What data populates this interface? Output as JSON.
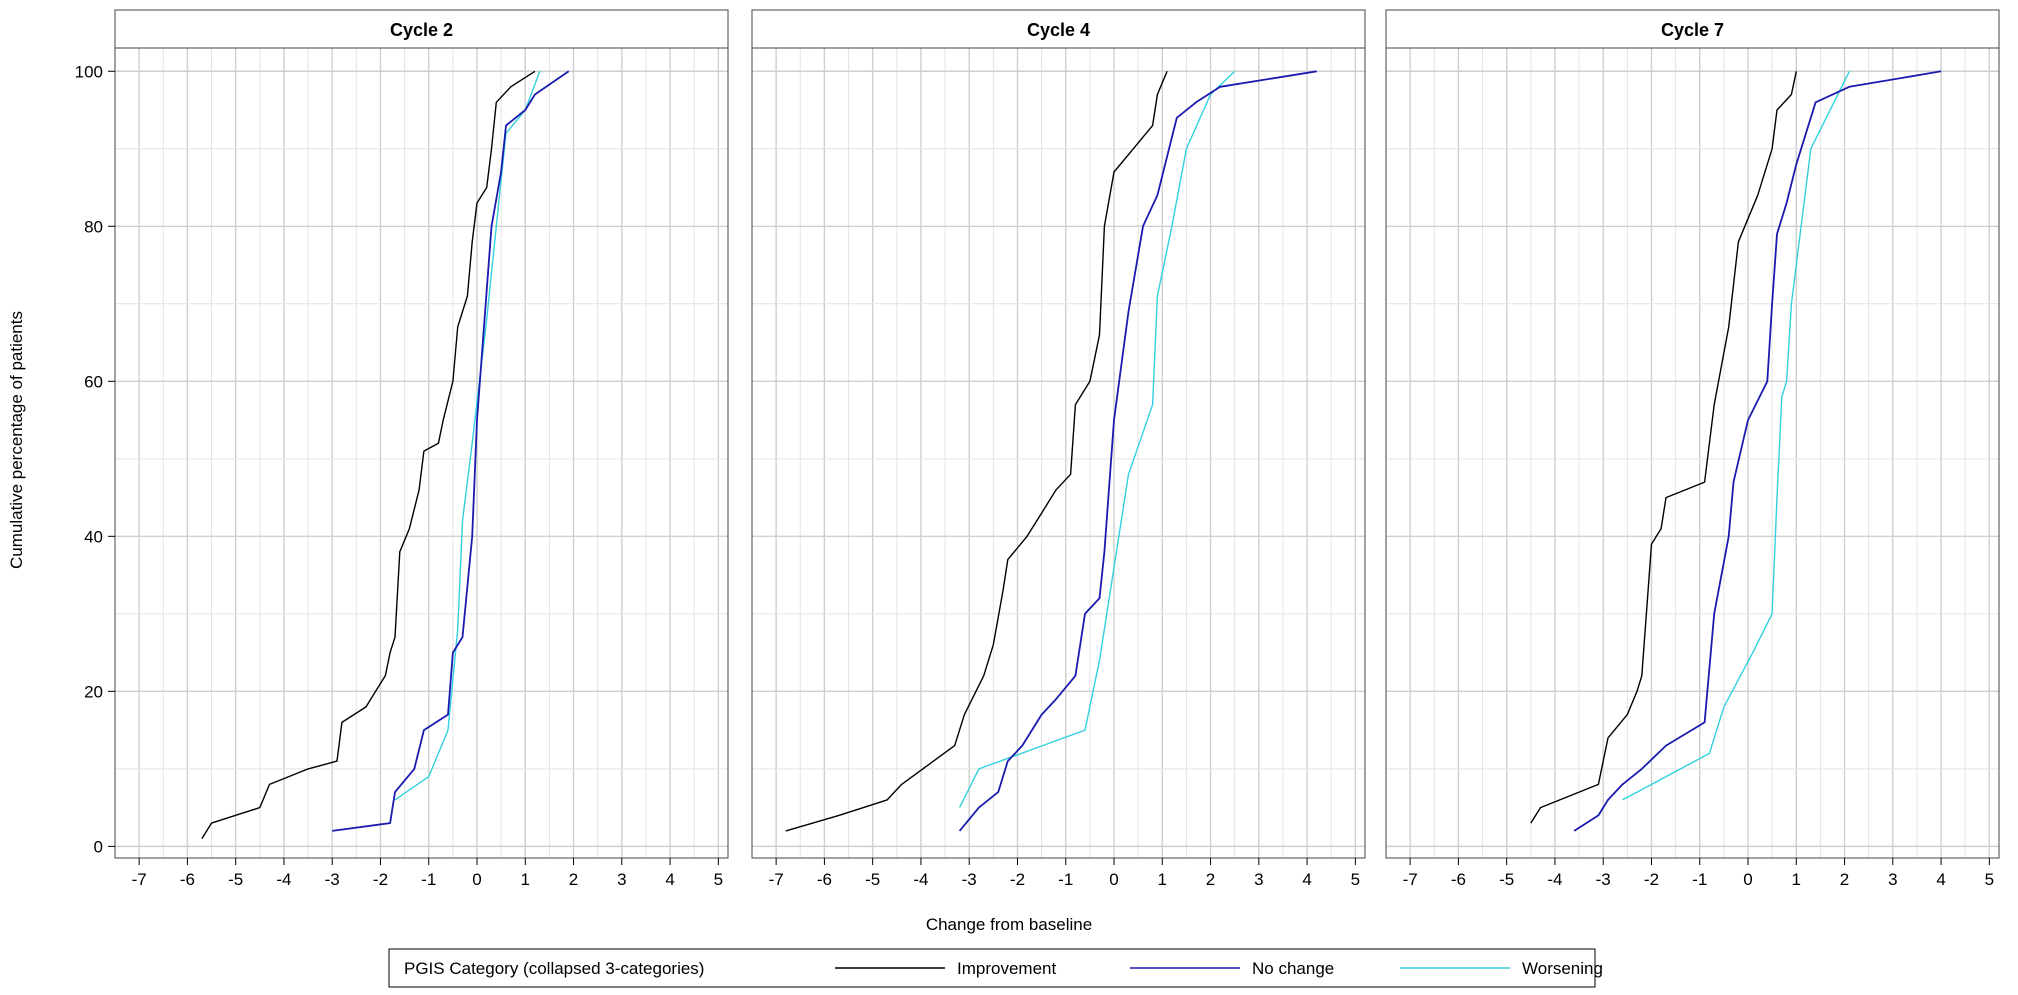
{
  "chart_data": {
    "type": "line",
    "subtype": "cumulative distribution",
    "xlabel": "Change from baseline",
    "ylabel": "Cumulative percentage of patients",
    "xlim": [
      -7.5,
      5.2
    ],
    "ylim": [
      -1.5,
      103
    ],
    "xticks": [
      -7,
      -6,
      -5,
      -4,
      -3,
      -2,
      -1,
      0,
      1,
      2,
      3,
      4,
      5
    ],
    "yticks": [
      0,
      20,
      40,
      60,
      80,
      100
    ],
    "grid": true,
    "legend": {
      "title": "PGIS Category (collapsed 3-categories)",
      "position": "bottom",
      "entries": [
        {
          "name": "Improvement",
          "color": "#000000"
        },
        {
          "name": "No change",
          "color": "#1a1aaf"
        },
        {
          "name": "Worsening",
          "color": "#31d1de"
        }
      ]
    },
    "panels": [
      {
        "title": "Cycle 2",
        "series": [
          {
            "name": "Improvement",
            "color": "#000000",
            "points": [
              [
                -5.7,
                1
              ],
              [
                -5.5,
                3
              ],
              [
                -4.5,
                5
              ],
              [
                -4.3,
                8
              ],
              [
                -3.5,
                10
              ],
              [
                -2.9,
                11
              ],
              [
                -2.8,
                16
              ],
              [
                -2.3,
                18
              ],
              [
                -2.1,
                20
              ],
              [
                -1.9,
                22
              ],
              [
                -1.8,
                25
              ],
              [
                -1.7,
                27
              ],
              [
                -1.6,
                38
              ],
              [
                -1.4,
                41
              ],
              [
                -1.2,
                46
              ],
              [
                -1.1,
                51
              ],
              [
                -0.8,
                52
              ],
              [
                -0.7,
                55
              ],
              [
                -0.5,
                60
              ],
              [
                -0.4,
                67
              ],
              [
                -0.2,
                71
              ],
              [
                -0.1,
                78
              ],
              [
                0,
                83
              ],
              [
                0.2,
                85
              ],
              [
                0.3,
                90
              ],
              [
                0.4,
                96
              ],
              [
                0.7,
                98
              ],
              [
                1.2,
                100
              ]
            ]
          },
          {
            "name": "No change",
            "color": "#1a1aaf",
            "points": [
              [
                -3,
                2
              ],
              [
                -1.8,
                3
              ],
              [
                -1.7,
                7
              ],
              [
                -1.3,
                10
              ],
              [
                -1.1,
                15
              ],
              [
                -0.6,
                17
              ],
              [
                -0.5,
                25
              ],
              [
                -0.3,
                27
              ],
              [
                -0.1,
                40
              ],
              [
                0,
                55
              ],
              [
                0.3,
                80
              ],
              [
                0.5,
                87
              ],
              [
                0.6,
                93
              ],
              [
                1,
                95
              ],
              [
                1.2,
                97
              ],
              [
                1.9,
                100
              ]
            ]
          },
          {
            "name": "Worsening",
            "color": "#31d1de",
            "points": [
              [
                -1.7,
                6
              ],
              [
                -1,
                9
              ],
              [
                -0.6,
                15
              ],
              [
                -0.4,
                28
              ],
              [
                -0.3,
                42
              ],
              [
                -0.1,
                52
              ],
              [
                0.2,
                68
              ],
              [
                0.4,
                80
              ],
              [
                0.6,
                92
              ],
              [
                1,
                95
              ],
              [
                1.3,
                100
              ]
            ]
          }
        ]
      },
      {
        "title": "Cycle 4",
        "series": [
          {
            "name": "Improvement",
            "color": "#000000",
            "points": [
              [
                -6.8,
                2
              ],
              [
                -5.7,
                4
              ],
              [
                -4.7,
                6
              ],
              [
                -4.4,
                8
              ],
              [
                -3.3,
                13
              ],
              [
                -3.1,
                17
              ],
              [
                -2.7,
                22
              ],
              [
                -2.5,
                26
              ],
              [
                -2.3,
                33
              ],
              [
                -2.2,
                37
              ],
              [
                -1.8,
                40
              ],
              [
                -1.5,
                43
              ],
              [
                -1.2,
                46
              ],
              [
                -0.9,
                48
              ],
              [
                -0.8,
                57
              ],
              [
                -0.5,
                60
              ],
              [
                -0.3,
                66
              ],
              [
                -0.2,
                80
              ],
              [
                0,
                87
              ],
              [
                0.4,
                90
              ],
              [
                0.8,
                93
              ],
              [
                0.9,
                97
              ],
              [
                1.1,
                100
              ]
            ]
          },
          {
            "name": "No change",
            "color": "#1a1aaf",
            "points": [
              [
                -3.2,
                2
              ],
              [
                -2.8,
                5
              ],
              [
                -2.4,
                7
              ],
              [
                -2.2,
                11
              ],
              [
                -1.9,
                13
              ],
              [
                -1.5,
                17
              ],
              [
                -1.2,
                19
              ],
              [
                -0.8,
                22
              ],
              [
                -0.6,
                30
              ],
              [
                -0.3,
                32
              ],
              [
                -0.2,
                38
              ],
              [
                0,
                55
              ],
              [
                0.3,
                69
              ],
              [
                0.6,
                80
              ],
              [
                0.9,
                84
              ],
              [
                1.3,
                94
              ],
              [
                1.7,
                96
              ],
              [
                2.2,
                98
              ],
              [
                4.2,
                100
              ]
            ]
          },
          {
            "name": "Worsening",
            "color": "#31d1de",
            "points": [
              [
                -3.2,
                5
              ],
              [
                -2.8,
                10
              ],
              [
                -0.6,
                15
              ],
              [
                -0.3,
                24
              ],
              [
                -0.1,
                32
              ],
              [
                0.3,
                48
              ],
              [
                0.8,
                57
              ],
              [
                0.9,
                71
              ],
              [
                1.2,
                80
              ],
              [
                1.5,
                90
              ],
              [
                2,
                97
              ],
              [
                2.5,
                100
              ]
            ]
          }
        ]
      },
      {
        "title": "Cycle 7",
        "series": [
          {
            "name": "Improvement",
            "color": "#000000",
            "points": [
              [
                -4.5,
                3
              ],
              [
                -4.3,
                5
              ],
              [
                -3.1,
                8
              ],
              [
                -2.9,
                14
              ],
              [
                -2.5,
                17
              ],
              [
                -2.3,
                20
              ],
              [
                -2.2,
                22
              ],
              [
                -2,
                39
              ],
              [
                -1.8,
                41
              ],
              [
                -1.7,
                45
              ],
              [
                -0.9,
                47
              ],
              [
                -0.7,
                57
              ],
              [
                -0.4,
                67
              ],
              [
                -0.2,
                78
              ],
              [
                0.2,
                84
              ],
              [
                0.5,
                90
              ],
              [
                0.6,
                95
              ],
              [
                0.9,
                97
              ],
              [
                1,
                100
              ]
            ]
          },
          {
            "name": "No change",
            "color": "#1a1aaf",
            "points": [
              [
                -3.6,
                2
              ],
              [
                -3.1,
                4
              ],
              [
                -2.9,
                6
              ],
              [
                -2.6,
                8
              ],
              [
                -2.2,
                10
              ],
              [
                -1.7,
                13
              ],
              [
                -0.9,
                16
              ],
              [
                -0.7,
                30
              ],
              [
                -0.4,
                40
              ],
              [
                -0.3,
                47
              ],
              [
                0,
                55
              ],
              [
                0.4,
                60
              ],
              [
                0.5,
                70
              ],
              [
                0.6,
                79
              ],
              [
                0.8,
                83
              ],
              [
                1,
                88
              ],
              [
                1.4,
                96
              ],
              [
                2.1,
                98
              ],
              [
                4,
                100
              ]
            ]
          },
          {
            "name": "Worsening",
            "color": "#31d1de",
            "points": [
              [
                -2.6,
                6
              ],
              [
                -0.8,
                12
              ],
              [
                -0.5,
                18
              ],
              [
                0.1,
                25
              ],
              [
                0.5,
                30
              ],
              [
                0.6,
                45
              ],
              [
                0.7,
                58
              ],
              [
                0.8,
                60
              ],
              [
                0.9,
                70
              ],
              [
                1.1,
                80
              ],
              [
                1.3,
                90
              ],
              [
                2.1,
                100
              ]
            ]
          }
        ]
      }
    ]
  }
}
